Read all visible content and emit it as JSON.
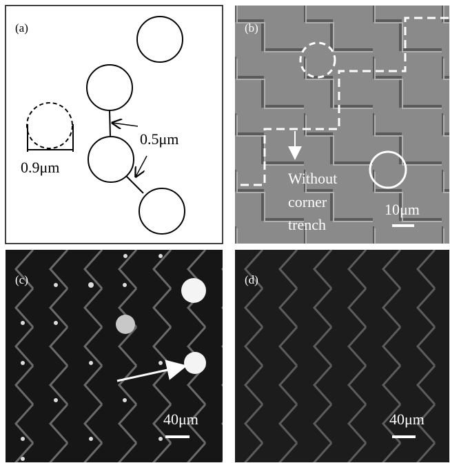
{
  "panel_a": {
    "label": "(a)",
    "diameter": "0.9μm",
    "gap": "0.5μm"
  },
  "panel_b": {
    "label": "(b)",
    "note": [
      "Without",
      "corner",
      "trench"
    ],
    "scale": "10μm"
  },
  "panel_c": {
    "label": "(c)",
    "scale": "40μm"
  },
  "panel_d": {
    "label": "(d)",
    "scale": "40μm"
  }
}
